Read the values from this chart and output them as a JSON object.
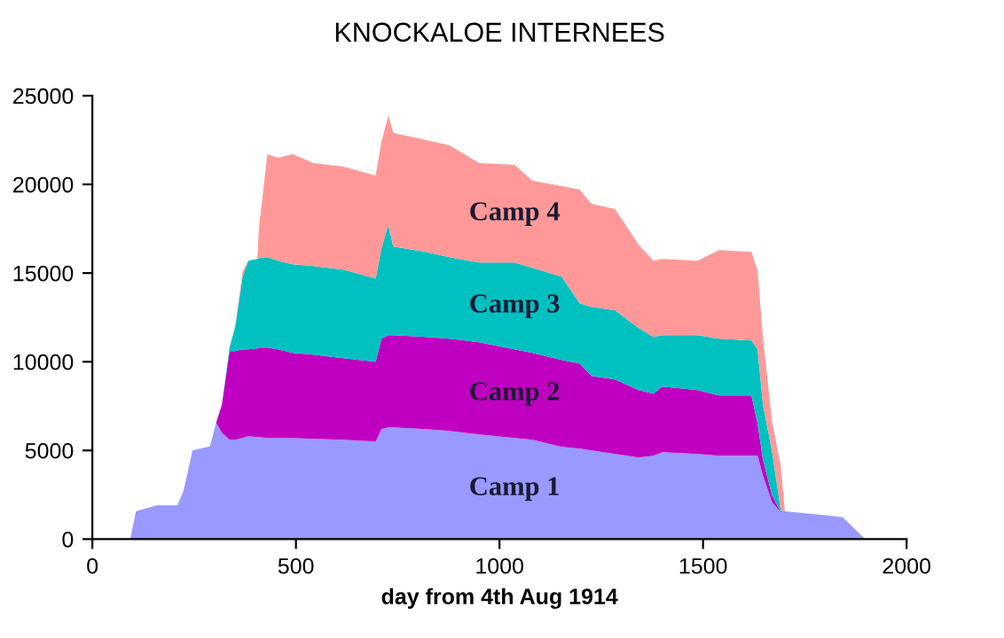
{
  "chart_data": {
    "type": "area",
    "stacked": true,
    "title": "KNOCKALOE INTERNEES",
    "xlabel": "day from 4th Aug 1914",
    "x": [
      93,
      107,
      158,
      209,
      224,
      246,
      289,
      304,
      318,
      337,
      351,
      369,
      383,
      405,
      410,
      430,
      456,
      492,
      543,
      616,
      696,
      710,
      727,
      739,
      819,
      877,
      950,
      1037,
      1081,
      1153,
      1197,
      1226,
      1284,
      1342,
      1378,
      1400,
      1487,
      1539,
      1619,
      1634,
      1647,
      1669,
      1691,
      1701,
      1807,
      1843,
      1894,
      1900
    ],
    "series": [
      {
        "name": "Camp 1",
        "color": "#9999ff",
        "values": [
          0,
          1570,
          1900,
          1900,
          2730,
          5000,
          5230,
          6570,
          6000,
          5600,
          5600,
          5700,
          5800,
          5750,
          5750,
          5700,
          5700,
          5700,
          5650,
          5600,
          5500,
          6200,
          6300,
          6300,
          6200,
          6100,
          5900,
          5700,
          5600,
          5200,
          5100,
          5000,
          4800,
          4600,
          4700,
          4900,
          4800,
          4700,
          4700,
          4700,
          3600,
          2100,
          1500,
          1570,
          1330,
          1230,
          100,
          0
        ]
      },
      {
        "name": "Camp 2",
        "color": "#c000c0",
        "values": [
          0,
          0,
          0,
          0,
          0,
          0,
          0,
          0,
          1570,
          5000,
          5000,
          5000,
          4900,
          5000,
          5050,
          5100,
          5000,
          4800,
          4750,
          4600,
          4500,
          5100,
          5200,
          5200,
          5200,
          5200,
          5200,
          5000,
          4900,
          4900,
          4800,
          4200,
          4200,
          3800,
          3500,
          3700,
          3600,
          3400,
          3400,
          1800,
          900,
          400,
          0,
          0,
          0,
          0,
          0,
          0
        ]
      },
      {
        "name": "Camp 3",
        "color": "#00c0c0",
        "values": [
          0,
          0,
          0,
          0,
          0,
          0,
          0,
          0,
          0,
          200,
          1400,
          4100,
          5000,
          5050,
          5050,
          5100,
          5000,
          5000,
          5000,
          5000,
          4700,
          5100,
          6200,
          5000,
          4800,
          4600,
          4500,
          4900,
          4800,
          4700,
          3400,
          3900,
          3900,
          3500,
          3200,
          2900,
          3100,
          3200,
          3100,
          4200,
          3100,
          2500,
          100,
          0,
          0,
          0,
          0,
          0
        ]
      },
      {
        "name": "Camp 4",
        "color": "#ff9999",
        "values": [
          0,
          0,
          0,
          0,
          0,
          0,
          0,
          0,
          0,
          0,
          0,
          300,
          0,
          0,
          1900,
          5800,
          5800,
          6200,
          5800,
          5800,
          5800,
          6000,
          6200,
          6400,
          6300,
          6300,
          5600,
          5500,
          4900,
          5100,
          6400,
          5800,
          5700,
          4700,
          4300,
          4300,
          4200,
          5000,
          5000,
          4400,
          3800,
          1700,
          2500,
          0,
          0,
          0,
          0,
          0
        ]
      }
    ],
    "xlim": [
      0,
      2000
    ],
    "ylim": [
      0,
      25000
    ],
    "xticks": [
      0,
      500,
      1000,
      1500,
      2000
    ],
    "yticks": [
      0,
      5000,
      10000,
      15000,
      20000,
      25000
    ],
    "grid": false,
    "legend": false
  }
}
